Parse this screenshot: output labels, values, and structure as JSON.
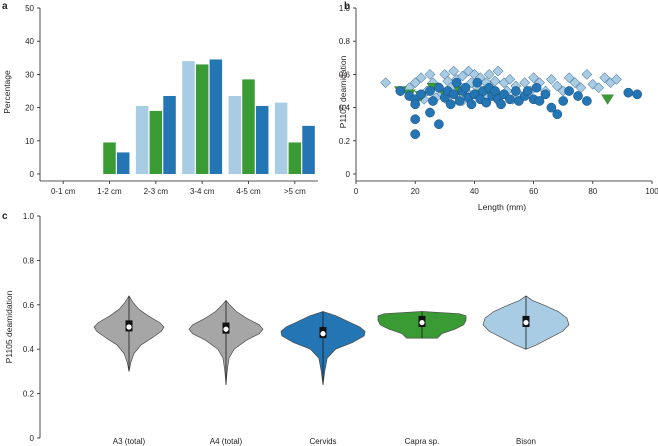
{
  "panels": {
    "a": "a",
    "b": "b",
    "c": "c"
  },
  "colors": {
    "light": "#a8cce4",
    "green": "#3a9b35",
    "blue": "#2475b4",
    "gray": "#a6a6a6",
    "marker_edge": "#1b4f80"
  },
  "chart_data": [
    {
      "type": "bar",
      "panel": "a",
      "title": "",
      "xlabel": "",
      "ylabel": "Percentage",
      "ylim": [
        0,
        50
      ],
      "yticks": [
        0,
        10,
        20,
        30,
        40,
        50
      ],
      "categories": [
        "0-1 cm",
        "1-2 cm",
        "2-3 cm",
        "3-4 cm",
        "4-5 cm",
        ">5 cm"
      ],
      "series": [
        {
          "name": "light blue",
          "color": "#a8cce4",
          "values": [
            0,
            0,
            20.5,
            34,
            23.5,
            21.5
          ]
        },
        {
          "name": "green",
          "color": "#3a9b35",
          "values": [
            0,
            9.5,
            19,
            33,
            28.5,
            9.5
          ]
        },
        {
          "name": "blue",
          "color": "#2475b4",
          "values": [
            0,
            6.5,
            23.5,
            34.5,
            20.5,
            14.5
          ]
        }
      ]
    },
    {
      "type": "scatter",
      "panel": "b",
      "title": "",
      "xlabel": "Length (mm)",
      "ylabel": "P1105 deamidation",
      "xlim": [
        0,
        100
      ],
      "ylim": [
        0,
        1.0
      ],
      "xticks": [
        0,
        20,
        40,
        60,
        80,
        100
      ],
      "yticks": [
        "0",
        "0.2",
        "0.4",
        "0.6",
        "0.8",
        "1.0"
      ],
      "series": [
        {
          "name": "diamonds",
          "marker": "diamond",
          "color": "#a8cce4",
          "points": [
            [
              10,
              0.55
            ],
            [
              15,
              0.5
            ],
            [
              18,
              0.52
            ],
            [
              20,
              0.55
            ],
            [
              22,
              0.58
            ],
            [
              24,
              0.5
            ],
            [
              25,
              0.6
            ],
            [
              26,
              0.55
            ],
            [
              28,
              0.52
            ],
            [
              29,
              0.48
            ],
            [
              30,
              0.6
            ],
            [
              31,
              0.56
            ],
            [
              32,
              0.52
            ],
            [
              33,
              0.62
            ],
            [
              34,
              0.57
            ],
            [
              35,
              0.53
            ],
            [
              36,
              0.59
            ],
            [
              37,
              0.5
            ],
            [
              38,
              0.62
            ],
            [
              39,
              0.55
            ],
            [
              40,
              0.6
            ],
            [
              41,
              0.52
            ],
            [
              42,
              0.58
            ],
            [
              43,
              0.48
            ],
            [
              44,
              0.55
            ],
            [
              45,
              0.6
            ],
            [
              46,
              0.5
            ],
            [
              47,
              0.56
            ],
            [
              48,
              0.62
            ],
            [
              50,
              0.55
            ],
            [
              51,
              0.5
            ],
            [
              52,
              0.57
            ],
            [
              54,
              0.53
            ],
            [
              55,
              0.48
            ],
            [
              57,
              0.55
            ],
            [
              59,
              0.5
            ],
            [
              60,
              0.58
            ],
            [
              62,
              0.55
            ],
            [
              64,
              0.5
            ],
            [
              66,
              0.57
            ],
            [
              68,
              0.53
            ],
            [
              70,
              0.5
            ],
            [
              72,
              0.58
            ],
            [
              74,
              0.55
            ],
            [
              76,
              0.52
            ],
            [
              78,
              0.6
            ],
            [
              80,
              0.54
            ],
            [
              82,
              0.52
            ],
            [
              84,
              0.58
            ],
            [
              86,
              0.55
            ],
            [
              88,
              0.57
            ],
            [
              23,
              0.45
            ],
            [
              27,
              0.46
            ],
            [
              36,
              0.44
            ],
            [
              44,
              0.46
            ],
            [
              53,
              0.45
            ],
            [
              31,
              0.44
            ]
          ]
        },
        {
          "name": "triangles",
          "marker": "triangle-down",
          "color": "#3a9b35",
          "points": [
            [
              15,
              0.5
            ],
            [
              18,
              0.48
            ],
            [
              22,
              0.47
            ],
            [
              26,
              0.52
            ],
            [
              30,
              0.48
            ],
            [
              35,
              0.5
            ],
            [
              38,
              0.45
            ],
            [
              42,
              0.48
            ],
            [
              45,
              0.5
            ],
            [
              48,
              0.46
            ],
            [
              85,
              0.45
            ]
          ]
        },
        {
          "name": "circles",
          "marker": "circle",
          "color": "#2475b4",
          "points": [
            [
              15,
              0.5
            ],
            [
              18,
              0.47
            ],
            [
              20,
              0.45
            ],
            [
              20,
              0.42
            ],
            [
              20,
              0.33
            ],
            [
              20,
              0.24
            ],
            [
              22,
              0.48
            ],
            [
              25,
              0.5
            ],
            [
              25,
              0.37
            ],
            [
              26,
              0.44
            ],
            [
              28,
              0.52
            ],
            [
              28,
              0.3
            ],
            [
              30,
              0.46
            ],
            [
              31,
              0.5
            ],
            [
              32,
              0.42
            ],
            [
              33,
              0.48
            ],
            [
              34,
              0.55
            ],
            [
              35,
              0.44
            ],
            [
              36,
              0.5
            ],
            [
              37,
              0.52
            ],
            [
              38,
              0.46
            ],
            [
              39,
              0.42
            ],
            [
              40,
              0.48
            ],
            [
              41,
              0.55
            ],
            [
              42,
              0.45
            ],
            [
              43,
              0.5
            ],
            [
              44,
              0.43
            ],
            [
              45,
              0.52
            ],
            [
              46,
              0.47
            ],
            [
              47,
              0.5
            ],
            [
              48,
              0.45
            ],
            [
              49,
              0.42
            ],
            [
              50,
              0.48
            ],
            [
              52,
              0.45
            ],
            [
              54,
              0.5
            ],
            [
              55,
              0.44
            ],
            [
              57,
              0.47
            ],
            [
              58,
              0.5
            ],
            [
              60,
              0.45
            ],
            [
              61,
              0.52
            ],
            [
              62,
              0.44
            ],
            [
              64,
              0.48
            ],
            [
              66,
              0.4
            ],
            [
              68,
              0.36
            ],
            [
              70,
              0.44
            ],
            [
              72,
              0.5
            ],
            [
              75,
              0.47
            ],
            [
              78,
              0.44
            ],
            [
              92,
              0.49
            ],
            [
              95,
              0.48
            ]
          ]
        }
      ]
    },
    {
      "type": "violin",
      "panel": "c",
      "title": "",
      "xlabel": "",
      "ylabel": "P1105 deamidation",
      "ylim": [
        0,
        1.0
      ],
      "yticks": [
        "0",
        "0.2",
        "0.4",
        "0.6",
        "0.8",
        "1.0"
      ],
      "categories": [
        "A3 (total)",
        "A4 (total)",
        "Cervids",
        "Capra sp.",
        "Bison"
      ],
      "groups": [
        {
          "name": "A3 (total)",
          "color": "#a6a6a6",
          "min": 0.3,
          "max": 0.64,
          "q1": 0.48,
          "q3": 0.53,
          "median": 0.5,
          "profile": [
            [
              0.3,
              0.0
            ],
            [
              0.34,
              0.05
            ],
            [
              0.38,
              0.14
            ],
            [
              0.42,
              0.35
            ],
            [
              0.45,
              0.65
            ],
            [
              0.48,
              0.92
            ],
            [
              0.5,
              1.0
            ],
            [
              0.52,
              0.88
            ],
            [
              0.55,
              0.55
            ],
            [
              0.58,
              0.28
            ],
            [
              0.61,
              0.12
            ],
            [
              0.64,
              0.0
            ]
          ]
        },
        {
          "name": "A4 (total)",
          "color": "#a6a6a6",
          "min": 0.24,
          "max": 0.62,
          "q1": 0.47,
          "q3": 0.52,
          "median": 0.49,
          "profile": [
            [
              0.24,
              0.0
            ],
            [
              0.3,
              0.03
            ],
            [
              0.36,
              0.08
            ],
            [
              0.4,
              0.22
            ],
            [
              0.44,
              0.55
            ],
            [
              0.47,
              0.9
            ],
            [
              0.49,
              1.0
            ],
            [
              0.51,
              0.9
            ],
            [
              0.54,
              0.55
            ],
            [
              0.57,
              0.28
            ],
            [
              0.6,
              0.1
            ],
            [
              0.62,
              0.0
            ]
          ]
        },
        {
          "name": "Cervids",
          "color": "#2475b4",
          "min": 0.24,
          "max": 0.57,
          "q1": 0.45,
          "q3": 0.5,
          "median": 0.47,
          "profile": [
            [
              0.24,
              0.0
            ],
            [
              0.3,
              0.04
            ],
            [
              0.36,
              0.1
            ],
            [
              0.4,
              0.3
            ],
            [
              0.43,
              0.7
            ],
            [
              0.46,
              0.98
            ],
            [
              0.48,
              1.0
            ],
            [
              0.5,
              0.88
            ],
            [
              0.52,
              0.65
            ],
            [
              0.55,
              0.32
            ],
            [
              0.57,
              0.0
            ]
          ]
        },
        {
          "name": "Capra sp.",
          "color": "#3a9b35",
          "min": 0.45,
          "max": 0.57,
          "q1": 0.5,
          "q3": 0.55,
          "median": 0.52,
          "profile": [
            [
              0.45,
              0.35
            ],
            [
              0.47,
              0.45
            ],
            [
              0.49,
              0.75
            ],
            [
              0.51,
              0.95
            ],
            [
              0.53,
              1.0
            ],
            [
              0.55,
              1.0
            ],
            [
              0.56,
              0.85
            ],
            [
              0.57,
              0.0
            ]
          ]
        },
        {
          "name": "Bison",
          "color": "#a8cce4",
          "min": 0.4,
          "max": 0.64,
          "q1": 0.5,
          "q3": 0.55,
          "median": 0.52,
          "profile": [
            [
              0.4,
              0.0
            ],
            [
              0.42,
              0.25
            ],
            [
              0.45,
              0.55
            ],
            [
              0.48,
              0.85
            ],
            [
              0.51,
              1.0
            ],
            [
              0.54,
              0.95
            ],
            [
              0.57,
              0.75
            ],
            [
              0.6,
              0.4
            ],
            [
              0.62,
              0.15
            ],
            [
              0.64,
              0.0
            ]
          ]
        }
      ]
    }
  ]
}
